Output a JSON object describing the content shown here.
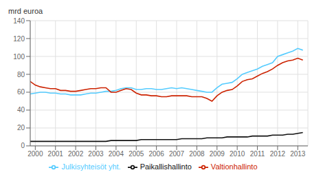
{
  "chart_data": {
    "type": "line",
    "ylabel": "mrd euroa",
    "x": [
      1999.75,
      2000.0,
      2000.25,
      2000.5,
      2000.75,
      2001.0,
      2001.25,
      2001.5,
      2001.75,
      2002.0,
      2002.25,
      2002.5,
      2002.75,
      2003.0,
      2003.25,
      2003.5,
      2003.75,
      2004.0,
      2004.25,
      2004.5,
      2004.75,
      2005.0,
      2005.25,
      2005.5,
      2005.75,
      2006.0,
      2006.25,
      2006.5,
      2006.75,
      2007.0,
      2007.25,
      2007.5,
      2007.75,
      2008.0,
      2008.25,
      2008.5,
      2008.75,
      2009.0,
      2009.25,
      2009.5,
      2009.75,
      2010.0,
      2010.25,
      2010.5,
      2010.75,
      2011.0,
      2011.25,
      2011.5,
      2011.75,
      2012.0,
      2012.25,
      2012.5,
      2012.75,
      2013.0,
      2013.25
    ],
    "series": [
      {
        "name": "Julkisyhteisöt yht.",
        "color": "#55ccff",
        "values": [
          58,
          59,
          60,
          60,
          59,
          59,
          58,
          58,
          57,
          57,
          57,
          58,
          59,
          59,
          60,
          61,
          61,
          62,
          64,
          65,
          65,
          63,
          63,
          64,
          64,
          63,
          63,
          64,
          65,
          64,
          65,
          64,
          63,
          62,
          61,
          60,
          60,
          65,
          69,
          70,
          71,
          75,
          80,
          82,
          84,
          86,
          89,
          91,
          93,
          100,
          102,
          104,
          106,
          109,
          107
        ]
      },
      {
        "name": "Valtionhallinto",
        "color": "#cc2200",
        "values": [
          72,
          68,
          66,
          65,
          64,
          64,
          62,
          62,
          61,
          61,
          62,
          63,
          64,
          64,
          65,
          65,
          60,
          60,
          62,
          64,
          63,
          59,
          57,
          57,
          56,
          56,
          55,
          55,
          56,
          56,
          56,
          56,
          55,
          55,
          55,
          53,
          50,
          56,
          60,
          62,
          63,
          67,
          72,
          74,
          75,
          78,
          81,
          83,
          86,
          90,
          93,
          95,
          96,
          98,
          96
        ]
      },
      {
        "name": "Paikallishallinto",
        "color": "#111111",
        "values": [
          5,
          5,
          5,
          5,
          5,
          5,
          5,
          5,
          5,
          5,
          5,
          5,
          5,
          5,
          5,
          5,
          6,
          6,
          6,
          6,
          6,
          6,
          7,
          7,
          7,
          7,
          7,
          7,
          7,
          7,
          8,
          8,
          8,
          8,
          8,
          9,
          9,
          9,
          9,
          10,
          10,
          10,
          10,
          10,
          11,
          11,
          11,
          11,
          12,
          12,
          12,
          13,
          13,
          14,
          15
        ]
      }
    ],
    "xlim": [
      1999.75,
      2013.5
    ],
    "xticks": [
      2000,
      2001,
      2002,
      2003,
      2004,
      2005,
      2006,
      2007,
      2008,
      2009,
      2010,
      2011,
      2012,
      2013
    ],
    "ylim": [
      0,
      140
    ],
    "yticks": [
      0,
      20,
      40,
      60,
      80,
      100,
      120,
      140
    ],
    "grid": true,
    "legend": "bottom"
  }
}
